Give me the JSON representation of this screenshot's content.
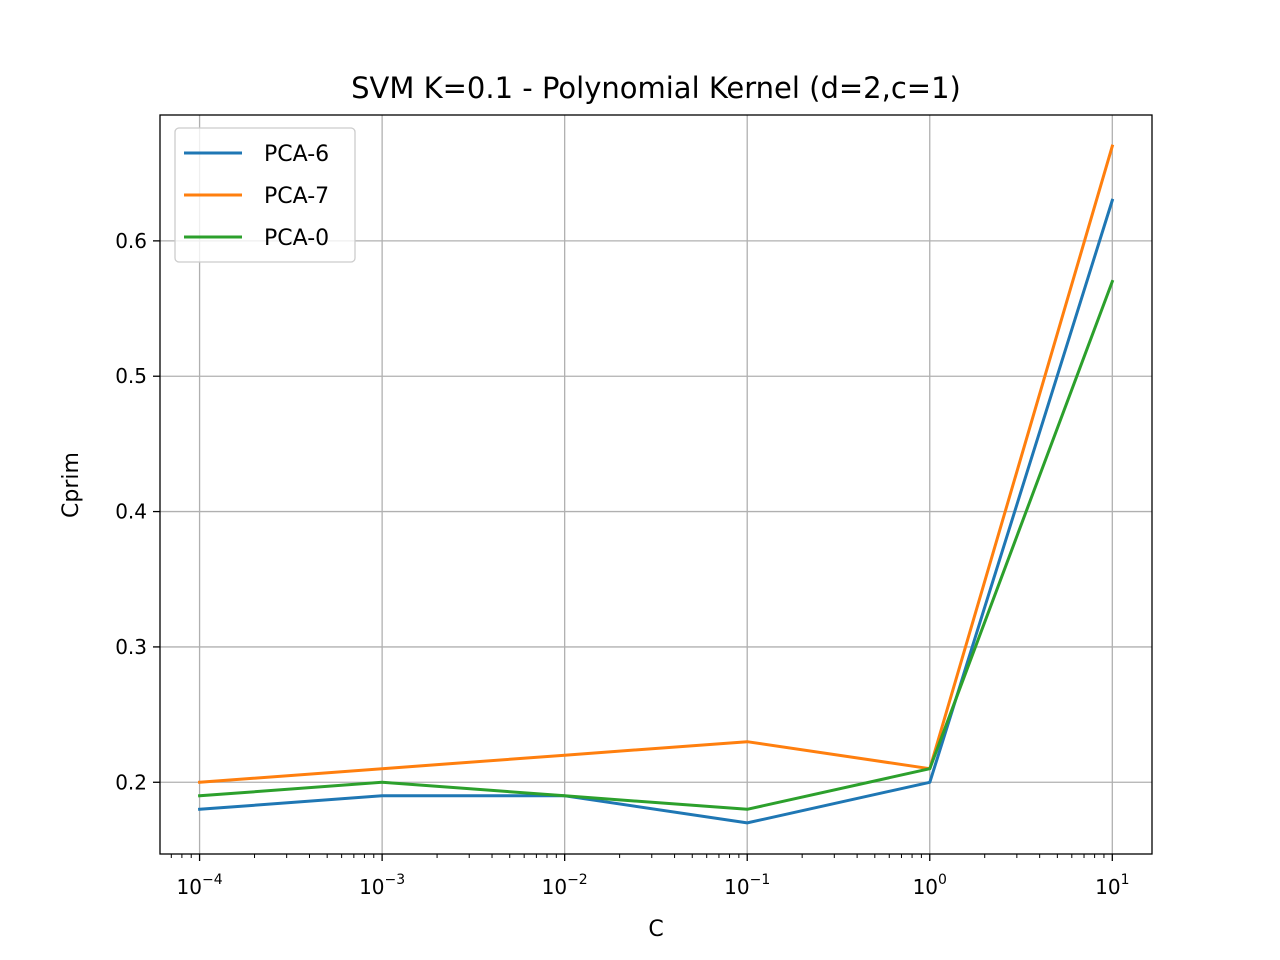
{
  "chart_data": {
    "type": "line",
    "title": "SVM K=0.1 - Polynomial Kernel (d=2,c=1)",
    "xlabel": "C",
    "ylabel": "Cprim",
    "xscale": "log",
    "x": [
      0.0001,
      0.001,
      0.01,
      0.1,
      1,
      10
    ],
    "xtick_labels": [
      {
        "base": "10",
        "exp": "−4"
      },
      {
        "base": "10",
        "exp": "−3"
      },
      {
        "base": "10",
        "exp": "−2"
      },
      {
        "base": "10",
        "exp": "−1"
      },
      {
        "base": "10",
        "exp": "0"
      },
      {
        "base": "10",
        "exp": "1"
      }
    ],
    "yticks": [
      0.2,
      0.3,
      0.4,
      0.5,
      0.6
    ],
    "ytick_labels": [
      "0.2",
      "0.3",
      "0.4",
      "0.5",
      "0.6"
    ],
    "xlim": [
      6.07e-05,
      16.5
    ],
    "ylim": [
      0.147,
      0.693
    ],
    "grid": true,
    "legend_position": "upper-left",
    "series": [
      {
        "name": "PCA-6",
        "color": "#1f77b4",
        "values": [
          0.18,
          0.19,
          0.19,
          0.17,
          0.2,
          0.63
        ]
      },
      {
        "name": "PCA-7",
        "color": "#ff7f0e",
        "values": [
          0.2,
          0.21,
          0.22,
          0.23,
          0.21,
          0.67
        ]
      },
      {
        "name": "PCA-0",
        "color": "#2ca02c",
        "values": [
          0.19,
          0.2,
          0.19,
          0.18,
          0.21,
          0.57
        ]
      }
    ]
  }
}
